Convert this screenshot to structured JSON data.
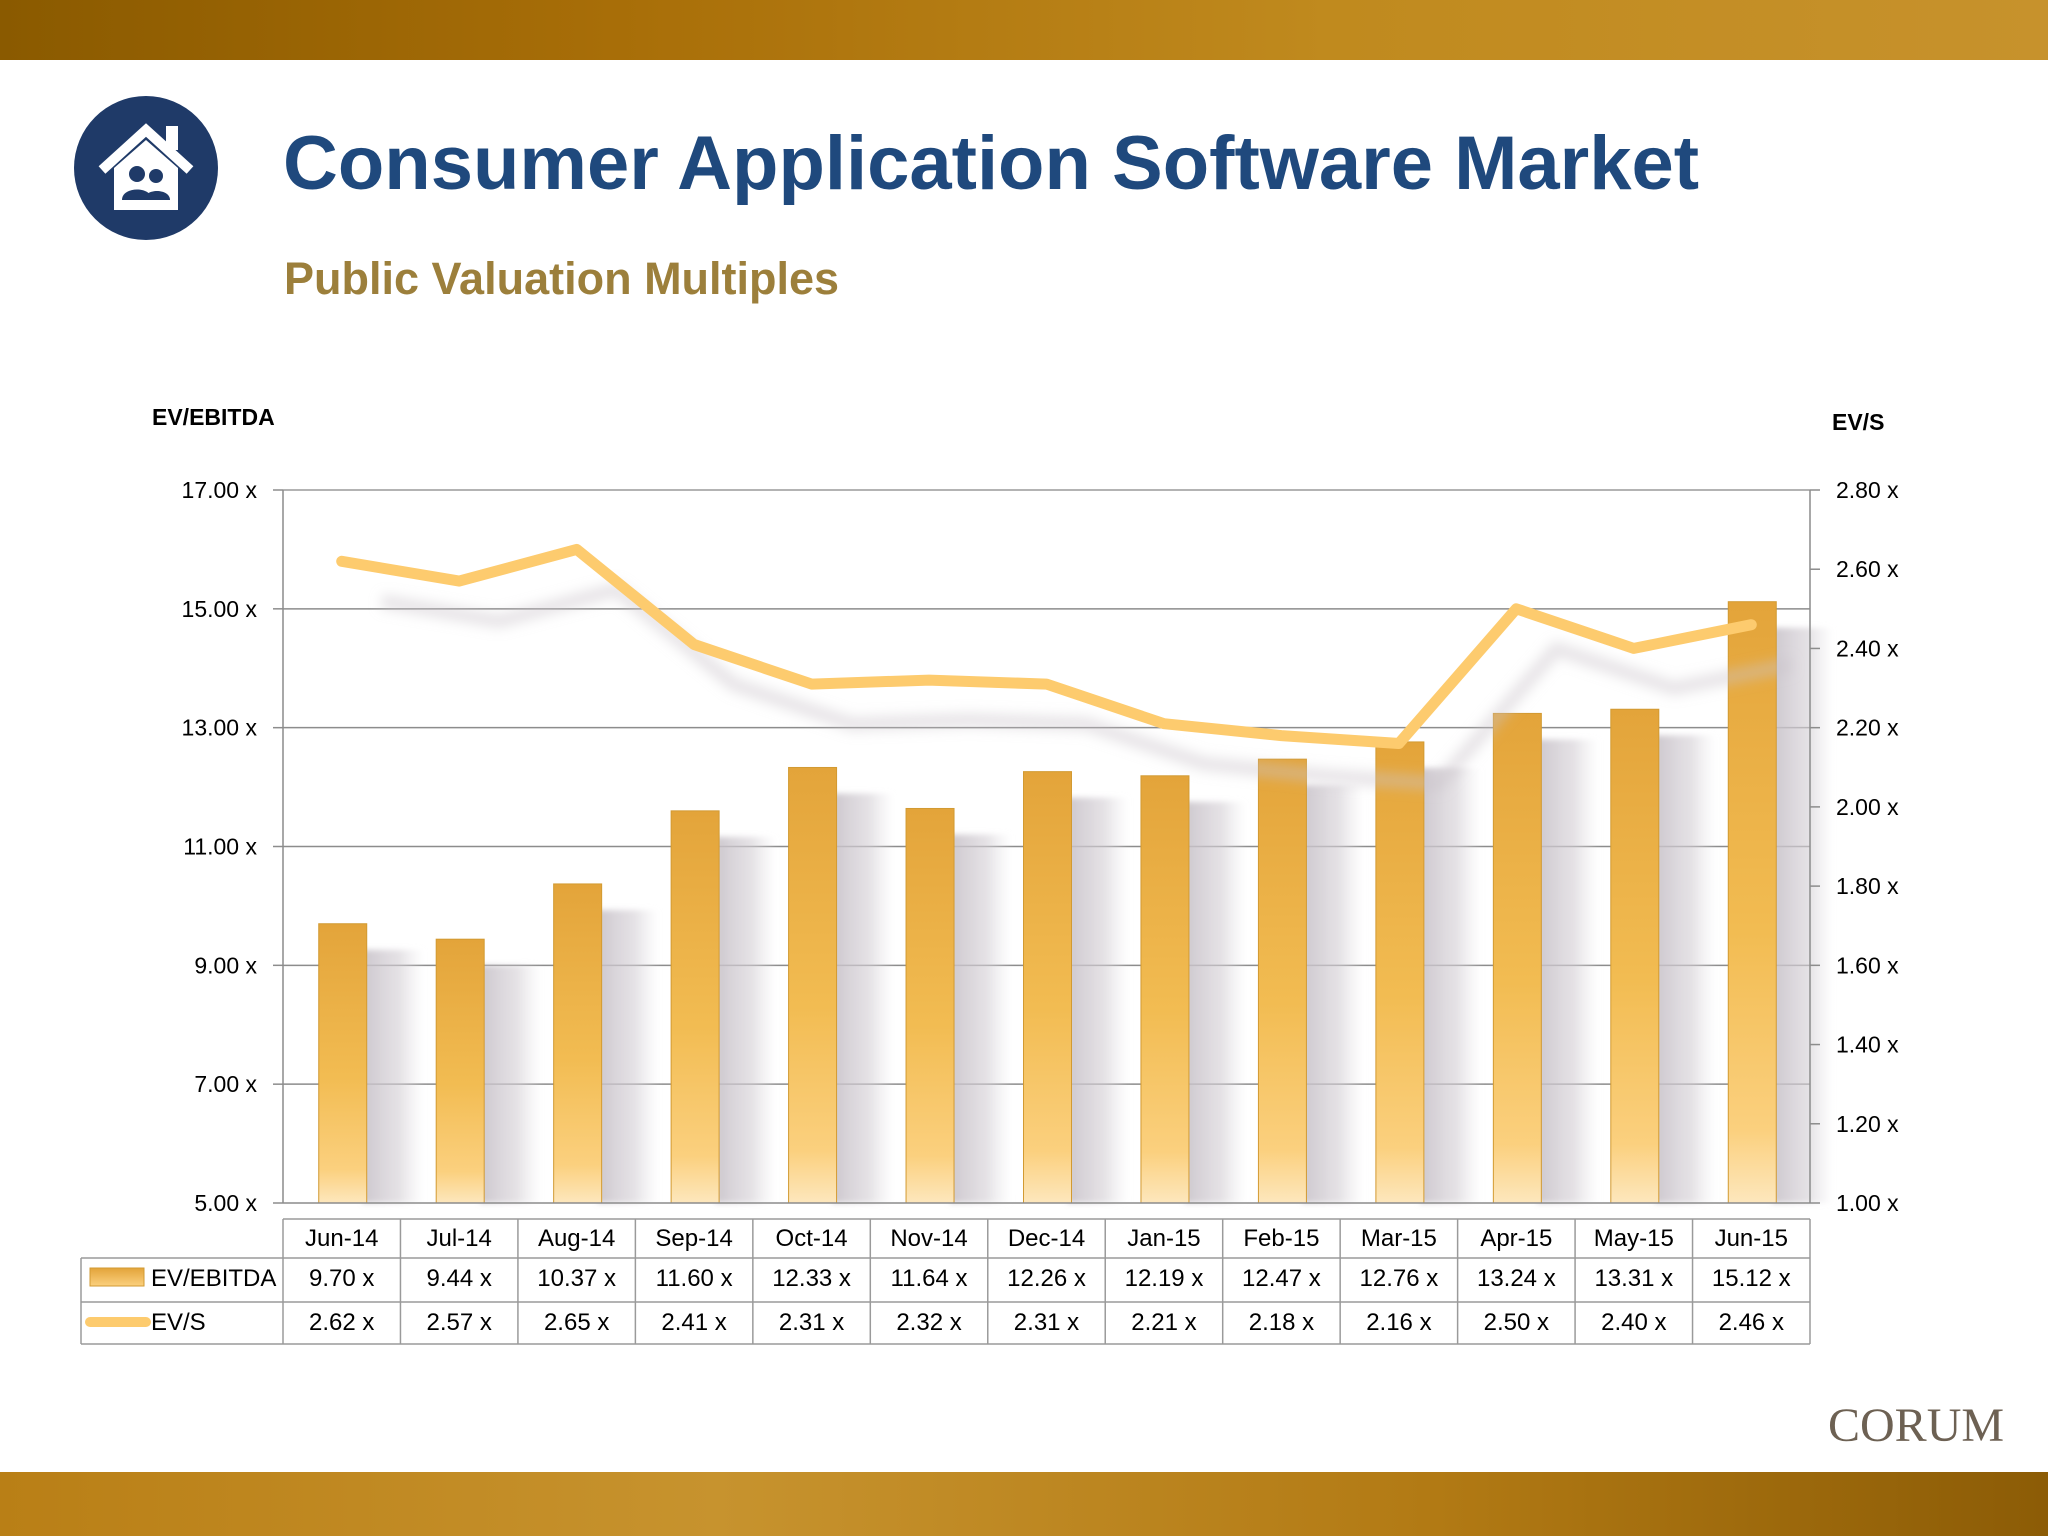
{
  "header": {
    "title": "Consumer Application Software Market",
    "subtitle": "Public Valuation Multiples"
  },
  "footer": {
    "brand": "CORUM"
  },
  "colors": {
    "band": "#a86e08",
    "title": "#1f497d",
    "subtitle": "#9c7f3b",
    "bar": "#e6ac3f",
    "line": "#fdcb6e",
    "icon_circle": "#1f3a68"
  },
  "icons": {
    "logo": "house-with-people-icon"
  },
  "chart_data": {
    "type": "bar",
    "categories": [
      "Jun-14",
      "Jul-14",
      "Aug-14",
      "Sep-14",
      "Oct-14",
      "Nov-14",
      "Dec-14",
      "Jan-15",
      "Feb-15",
      "Mar-15",
      "Apr-15",
      "May-15",
      "Jun-15"
    ],
    "series": [
      {
        "name": "EV/EBITDA",
        "type": "bar",
        "axis": "left",
        "values": [
          9.7,
          9.44,
          10.37,
          11.6,
          12.33,
          11.64,
          12.26,
          12.19,
          12.47,
          12.76,
          13.24,
          13.31,
          15.12
        ],
        "labels": [
          "9.70 x",
          "9.44 x",
          "10.37 x",
          "11.60 x",
          "12.33 x",
          "11.64 x",
          "12.26 x",
          "12.19 x",
          "12.47 x",
          "12.76 x",
          "13.24 x",
          "13.31 x",
          "15.12 x"
        ]
      },
      {
        "name": "EV/S",
        "type": "line",
        "axis": "right",
        "values": [
          2.62,
          2.57,
          2.65,
          2.41,
          2.31,
          2.32,
          2.31,
          2.21,
          2.18,
          2.16,
          2.5,
          2.4,
          2.46
        ],
        "labels": [
          "2.62 x",
          "2.57 x",
          "2.65 x",
          "2.41 x",
          "2.31 x",
          "2.32 x",
          "2.31 x",
          "2.21 x",
          "2.18 x",
          "2.16 x",
          "2.50 x",
          "2.40 x",
          "2.46 x"
        ]
      }
    ],
    "y_left": {
      "label": "EV/EBITDA",
      "range": [
        5,
        17
      ],
      "ticks": [
        5,
        7,
        9,
        11,
        13,
        15,
        17
      ],
      "tick_labels": [
        "5.00 x",
        "7.00 x",
        "9.00 x",
        "11.00 x",
        "13.00 x",
        "15.00 x",
        "17.00 x"
      ]
    },
    "y_right": {
      "label": "EV/S",
      "range": [
        1.0,
        2.8
      ],
      "ticks": [
        1.0,
        1.2,
        1.4,
        1.6,
        1.8,
        2.0,
        2.2,
        2.4,
        2.6,
        2.8
      ],
      "tick_labels": [
        "1.00 x",
        "1.20 x",
        "1.40 x",
        "1.60 x",
        "1.80 x",
        "2.00 x",
        "2.20 x",
        "2.40 x",
        "2.60 x",
        "2.80 x"
      ]
    },
    "grid": true,
    "legend": "data-table-below"
  }
}
